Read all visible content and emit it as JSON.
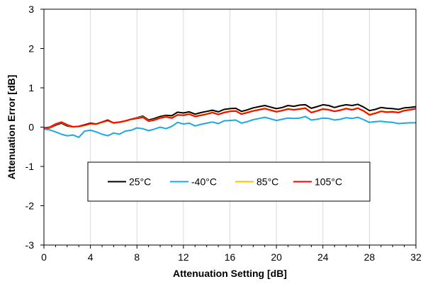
{
  "chart_data": {
    "type": "line",
    "title": "",
    "xlabel": "Attenuation Setting [dB]",
    "ylabel": "Attenuation Error [dB]",
    "xlim": [
      0,
      32
    ],
    "ylim": [
      -3,
      3
    ],
    "xticks": [
      "0",
      "4",
      "8",
      "12",
      "16",
      "20",
      "24",
      "28",
      "32"
    ],
    "yticks": [
      "-3",
      "-2",
      "-1",
      "0",
      "1",
      "2",
      "3"
    ],
    "minor_x_step": 1,
    "grid": "vertical major",
    "legend_position": "lower-center, inside plot",
    "series": [
      {
        "name": "25°C",
        "color": "#000000",
        "x": [
          0,
          0.5,
          1,
          1.5,
          2,
          2.5,
          3,
          3.5,
          4,
          4.5,
          5,
          5.5,
          6,
          6.5,
          7,
          7.5,
          8,
          8.5,
          9,
          9.5,
          10,
          10.5,
          11,
          11.5,
          12,
          12.5,
          13,
          13.5,
          14,
          14.5,
          15,
          15.5,
          16,
          16.5,
          17,
          17.5,
          18,
          18.5,
          19,
          19.5,
          20,
          20.5,
          21,
          21.5,
          22,
          22.5,
          23,
          23.5,
          24,
          24.5,
          25,
          25.5,
          26,
          26.5,
          27,
          27.5,
          28,
          28.5,
          29,
          29.5,
          30,
          30.5,
          31,
          31.5,
          32
        ],
        "values": [
          -0.03,
          -0.02,
          0.05,
          0.1,
          0.03,
          0.0,
          0.02,
          0.06,
          0.1,
          0.08,
          0.13,
          0.18,
          0.1,
          0.12,
          0.15,
          0.2,
          0.24,
          0.28,
          0.18,
          0.22,
          0.27,
          0.3,
          0.29,
          0.38,
          0.36,
          0.39,
          0.33,
          0.37,
          0.4,
          0.43,
          0.39,
          0.45,
          0.47,
          0.48,
          0.4,
          0.44,
          0.49,
          0.52,
          0.55,
          0.51,
          0.47,
          0.5,
          0.55,
          0.53,
          0.56,
          0.57,
          0.48,
          0.52,
          0.57,
          0.55,
          0.5,
          0.54,
          0.57,
          0.55,
          0.58,
          0.51,
          0.42,
          0.45,
          0.5,
          0.48,
          0.47,
          0.45,
          0.49,
          0.5,
          0.52
        ]
      },
      {
        "name": "-40°C",
        "color": "#1CA8E0",
        "x": [
          0,
          0.5,
          1,
          1.5,
          2,
          2.5,
          3,
          3.5,
          4,
          4.5,
          5,
          5.5,
          6,
          6.5,
          7,
          7.5,
          8,
          8.5,
          9,
          9.5,
          10,
          10.5,
          11,
          11.5,
          12,
          12.5,
          13,
          13.5,
          14,
          14.5,
          15,
          15.5,
          16,
          16.5,
          17,
          17.5,
          18,
          18.5,
          19,
          19.5,
          20,
          20.5,
          21,
          21.5,
          22,
          22.5,
          23,
          23.5,
          24,
          24.5,
          25,
          25.5,
          26,
          26.5,
          27,
          27.5,
          28,
          28.5,
          29,
          29.5,
          30,
          30.5,
          31,
          31.5,
          32
        ],
        "values": [
          -0.05,
          -0.07,
          -0.12,
          -0.18,
          -0.22,
          -0.2,
          -0.26,
          -0.1,
          -0.08,
          -0.12,
          -0.18,
          -0.22,
          -0.15,
          -0.18,
          -0.1,
          -0.08,
          -0.02,
          -0.04,
          -0.09,
          -0.05,
          0.0,
          -0.04,
          0.02,
          0.12,
          0.08,
          0.1,
          0.03,
          0.07,
          0.1,
          0.13,
          0.09,
          0.16,
          0.17,
          0.18,
          0.1,
          0.14,
          0.19,
          0.22,
          0.25,
          0.21,
          0.17,
          0.2,
          0.23,
          0.22,
          0.23,
          0.27,
          0.18,
          0.2,
          0.23,
          0.22,
          0.18,
          0.2,
          0.24,
          0.22,
          0.25,
          0.19,
          0.12,
          0.14,
          0.15,
          0.13,
          0.12,
          0.09,
          0.1,
          0.11,
          0.11
        ]
      },
      {
        "name": "85°C",
        "color": "#FFC000",
        "x": [
          0,
          0.5,
          1,
          1.5,
          2,
          2.5,
          3,
          3.5,
          4,
          4.5,
          5,
          5.5,
          6,
          6.5,
          7,
          7.5,
          8,
          8.5,
          9,
          9.5,
          10,
          10.5,
          11,
          11.5,
          12,
          12.5,
          13,
          13.5,
          14,
          14.5,
          15,
          15.5,
          16,
          16.5,
          17,
          17.5,
          18,
          18.5,
          19,
          19.5,
          20,
          20.5,
          21,
          21.5,
          22,
          22.5,
          23,
          23.5,
          24,
          24.5,
          25,
          25.5,
          26,
          26.5,
          27,
          27.5,
          28,
          28.5,
          29,
          29.5,
          30,
          30.5,
          31,
          31.5,
          32
        ],
        "values": [
          -0.02,
          -0.01,
          0.07,
          0.12,
          0.05,
          0.0,
          0.01,
          0.04,
          0.08,
          0.07,
          0.12,
          0.16,
          0.1,
          0.12,
          0.15,
          0.2,
          0.23,
          0.26,
          0.16,
          0.19,
          0.24,
          0.27,
          0.24,
          0.32,
          0.31,
          0.34,
          0.28,
          0.31,
          0.34,
          0.38,
          0.33,
          0.38,
          0.41,
          0.42,
          0.34,
          0.38,
          0.42,
          0.45,
          0.48,
          0.44,
          0.4,
          0.43,
          0.47,
          0.45,
          0.47,
          0.49,
          0.38,
          0.42,
          0.47,
          0.45,
          0.41,
          0.44,
          0.48,
          0.45,
          0.49,
          0.42,
          0.33,
          0.36,
          0.41,
          0.39,
          0.4,
          0.38,
          0.43,
          0.45,
          0.47
        ]
      },
      {
        "name": "105°C",
        "color": "#FF0000",
        "x": [
          0,
          0.5,
          1,
          1.5,
          2,
          2.5,
          3,
          3.5,
          4,
          4.5,
          5,
          5.5,
          6,
          6.5,
          7,
          7.5,
          8,
          8.5,
          9,
          9.5,
          10,
          10.5,
          11,
          11.5,
          12,
          12.5,
          13,
          13.5,
          14,
          14.5,
          15,
          15.5,
          16,
          16.5,
          17,
          17.5,
          18,
          18.5,
          19,
          19.5,
          20,
          20.5,
          21,
          21.5,
          22,
          22.5,
          23,
          23.5,
          24,
          24.5,
          25,
          25.5,
          26,
          26.5,
          27,
          27.5,
          28,
          28.5,
          29,
          29.5,
          30,
          30.5,
          31,
          31.5,
          32
        ],
        "values": [
          -0.02,
          0.0,
          0.08,
          0.13,
          0.06,
          0.01,
          0.02,
          0.05,
          0.09,
          0.08,
          0.13,
          0.17,
          0.11,
          0.13,
          0.16,
          0.2,
          0.22,
          0.25,
          0.15,
          0.18,
          0.23,
          0.26,
          0.23,
          0.31,
          0.3,
          0.33,
          0.27,
          0.3,
          0.33,
          0.37,
          0.32,
          0.37,
          0.4,
          0.41,
          0.33,
          0.37,
          0.41,
          0.44,
          0.47,
          0.43,
          0.39,
          0.42,
          0.46,
          0.44,
          0.46,
          0.48,
          0.37,
          0.41,
          0.46,
          0.44,
          0.4,
          0.43,
          0.47,
          0.44,
          0.48,
          0.41,
          0.31,
          0.35,
          0.4,
          0.38,
          0.39,
          0.37,
          0.42,
          0.44,
          0.47
        ]
      }
    ]
  }
}
